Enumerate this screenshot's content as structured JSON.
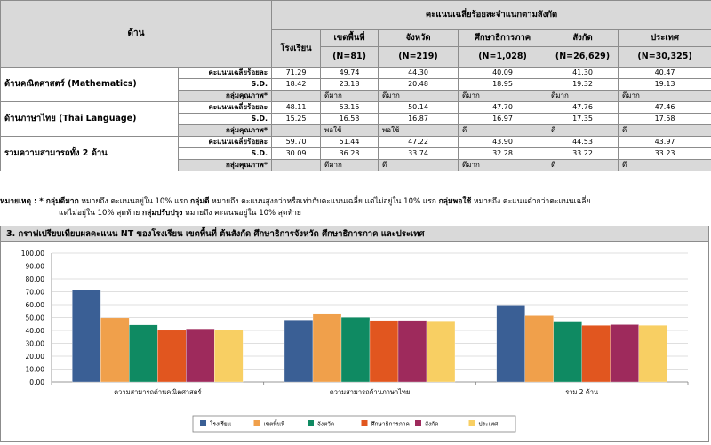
{
  "table": {
    "header_area": "ด้าน",
    "header_group": "คะแนนเฉลี่ยร้อยละจำแนกตามสังกัด",
    "columns": [
      {
        "name": "โรงเรียน",
        "n": ""
      },
      {
        "name": "เขตพื้นที่",
        "n": "(N=81)"
      },
      {
        "name": "จังหวัด",
        "n": "(N=219)"
      },
      {
        "name": "ศึกษาธิการภาค",
        "n": "(N=1,028)"
      },
      {
        "name": "สังกัด",
        "n": "(N=26,629)"
      },
      {
        "name": "ประเทศ",
        "n": "(N=30,325)"
      }
    ],
    "row_labels": {
      "mean": "คะแนนเฉลี่ยร้อยละ",
      "sd": "S.D.",
      "grade": "กลุ่มคุณภาพ*"
    },
    "groups": [
      {
        "label": "ด้านคณิตศาสตร์ (Mathematics)",
        "mean": [
          "71.29",
          "49.74",
          "44.30",
          "40.09",
          "41.30",
          "40.47"
        ],
        "sd": [
          "18.42",
          "23.18",
          "20.48",
          "18.95",
          "19.32",
          "19.13"
        ],
        "grade": [
          "",
          "ดีมาก",
          "ดีมาก",
          "ดีมาก",
          "ดีมาก",
          "ดีมาก"
        ]
      },
      {
        "label": "ด้านภาษาไทย (Thai Language)",
        "mean": [
          "48.11",
          "53.15",
          "50.14",
          "47.70",
          "47.76",
          "47.46"
        ],
        "sd": [
          "15.25",
          "16.53",
          "16.87",
          "16.97",
          "17.35",
          "17.58"
        ],
        "grade": [
          "",
          "พอใช้",
          "พอใช้",
          "ดี",
          "ดี",
          "ดี"
        ]
      },
      {
        "label": "รวมความสามารถทั้ง 2 ด้าน",
        "mean": [
          "59.70",
          "51.44",
          "47.22",
          "43.90",
          "44.53",
          "43.97"
        ],
        "sd": [
          "30.09",
          "36.23",
          "33.74",
          "32.28",
          "33.22",
          "33.23"
        ],
        "grade": [
          "",
          "ดีมาก",
          "ดี",
          "ดีมาก",
          "ดี",
          "ดี"
        ]
      }
    ]
  },
  "note": {
    "line1_a": "หมายเหตุ : * ",
    "line1_b": "กลุ่มดีมาก",
    "line1_c": " หมายถึง คะแนนอยู่ใน 10% แรก ",
    "line1_d": "กลุ่มดี",
    "line1_e": " หมายถึง คะแนนสูงกว่าหรือเท่ากับคะแนนเฉลี่ย แต่ไม่อยู่ใน 10% แรก ",
    "line1_f": "กลุ่มพอใช้",
    "line1_g": " หมายถึง คะแนนต่ำกว่าคะแนนเฉลี่ย",
    "line2_a": "แต่ไม่อยู่ใน 10% สุดท้าย ",
    "line2_b": "กลุ่มปรับปรุง",
    "line2_c": " หมายถึง คะแนนอยู่ใน 10% สุดท้าย"
  },
  "chart_title": "3. กราฟเปรียบเทียบผลคะแนน NT ของโรงเรียน เขตพื้นที่  ต้นสังกัด ศึกษาธิการจังหวัด ศึกษาธิการภาค และประเทศ",
  "chart_data": {
    "type": "bar",
    "title": "",
    "categories": [
      "ความสามารถด้านคณิตศาสตร์",
      "ความสามารถด้านภาษาไทย",
      "รวม 2 ด้าน"
    ],
    "series": [
      {
        "name": "โรงเรียน",
        "color": "#3a5f95",
        "values": [
          71.29,
          48.11,
          59.7
        ]
      },
      {
        "name": "เขตพื้นที่",
        "color": "#f0a04b",
        "values": [
          49.74,
          53.15,
          51.44
        ]
      },
      {
        "name": "จังหวัด",
        "color": "#0f8a62",
        "values": [
          44.3,
          50.14,
          47.22
        ]
      },
      {
        "name": "ศึกษาธิการภาค",
        "color": "#e1561f",
        "values": [
          40.09,
          47.7,
          43.9
        ]
      },
      {
        "name": "สังกัด",
        "color": "#9e2a5c",
        "values": [
          41.3,
          47.76,
          44.53
        ]
      },
      {
        "name": "ประเทศ",
        "color": "#f8cf63",
        "values": [
          40.47,
          47.46,
          43.97
        ]
      }
    ],
    "yticks": [
      "0.00",
      "10.00",
      "20.00",
      "30.00",
      "40.00",
      "50.00",
      "60.00",
      "70.00",
      "80.00",
      "90.00",
      "100.00"
    ],
    "ylim": [
      0,
      100
    ],
    "grid": true,
    "legend": "bottom"
  }
}
